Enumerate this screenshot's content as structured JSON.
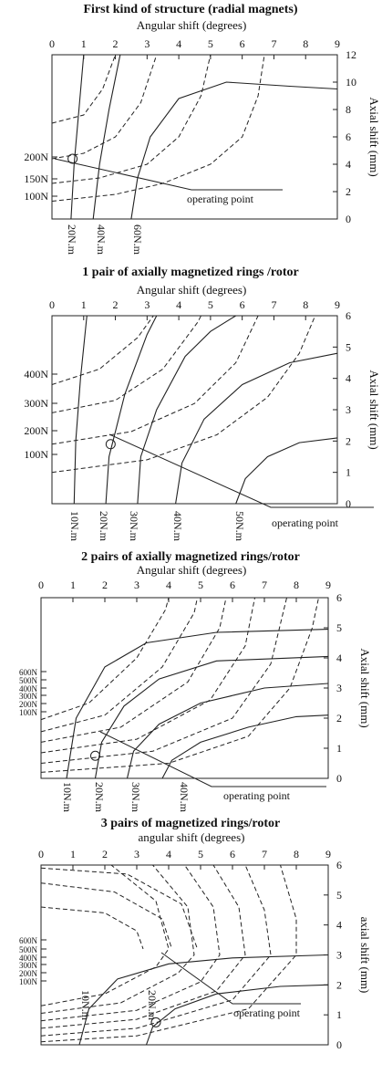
{
  "chart_data": [
    {
      "type": "line",
      "title": "First kind of structure (radial magnets)",
      "xlabel": "Angular shift (degrees)",
      "ylabel": "Axial shift (mm)",
      "xlim": [
        0,
        9
      ],
      "ylim": [
        0,
        12
      ],
      "x_ticks": [
        "0",
        "1",
        "2",
        "3",
        "4",
        "5",
        "6",
        "7",
        "8",
        "9"
      ],
      "y_ticks": [
        "0",
        "2",
        "4",
        "6",
        "8",
        "10",
        "12"
      ],
      "annotation": "operating point",
      "operating_point": {
        "x": 0.65,
        "y": 4.4
      },
      "solid_series": [
        {
          "name": "20N.m",
          "points": [
            [
              0.6,
              0
            ],
            [
              0.7,
              4
            ],
            [
              0.85,
              8
            ],
            [
              1.0,
              12
            ]
          ]
        },
        {
          "name": "40N.m",
          "points": [
            [
              1.3,
              0
            ],
            [
              1.5,
              4
            ],
            [
              1.8,
              8
            ],
            [
              2.15,
              12
            ]
          ]
        },
        {
          "name": "60N.m",
          "points": [
            [
              2.5,
              0
            ],
            [
              2.7,
              3
            ],
            [
              3.1,
              6
            ],
            [
              4.0,
              8.8
            ],
            [
              5.5,
              10
            ],
            [
              7.5,
              9.7
            ],
            [
              9.0,
              9.5
            ]
          ]
        }
      ],
      "dashed_series": [
        {
          "name": "100N",
          "points": [
            [
              0,
              1.3
            ],
            [
              2,
              1.8
            ],
            [
              3.5,
              2.6
            ],
            [
              5,
              4
            ],
            [
              6,
              6
            ],
            [
              6.5,
              9
            ],
            [
              6.7,
              12
            ]
          ]
        },
        {
          "name": "150N",
          "points": [
            [
              0,
              2.6
            ],
            [
              1.5,
              3
            ],
            [
              3,
              4
            ],
            [
              4,
              6
            ],
            [
              4.7,
              9
            ],
            [
              5,
              12
            ]
          ]
        },
        {
          "name": "200N",
          "points": [
            [
              0,
              4.4
            ],
            [
              1,
              4.8
            ],
            [
              2,
              6
            ],
            [
              2.8,
              8.5
            ],
            [
              3.3,
              12
            ]
          ]
        },
        {
          "name": "",
          "points": [
            [
              0,
              7
            ],
            [
              1,
              7.6
            ],
            [
              1.6,
              9.5
            ],
            [
              2,
              12
            ]
          ]
        }
      ]
    },
    {
      "type": "line",
      "title": "1 pair of axially magnetized rings /rotor",
      "xlabel": "Angular shift (degrees)",
      "ylabel": "Axial shift (mm)",
      "xlim": [
        0,
        9
      ],
      "ylim": [
        0,
        6
      ],
      "x_ticks": [
        "0",
        "1",
        "2",
        "3",
        "4",
        "5",
        "6",
        "7",
        "8",
        "9"
      ],
      "y_ticks": [
        "0",
        "1",
        "2",
        "3",
        "4",
        "5",
        "6"
      ],
      "annotation": "operating point",
      "operating_point": {
        "x": 1.85,
        "y": 1.9
      },
      "solid_series": [
        {
          "name": "10N.m",
          "points": [
            [
              0.7,
              0
            ],
            [
              0.75,
              2
            ],
            [
              0.9,
              4
            ],
            [
              1.1,
              6
            ]
          ]
        },
        {
          "name": "20N.m",
          "points": [
            [
              1.7,
              0
            ],
            [
              1.8,
              1.5
            ],
            [
              2.3,
              3.5
            ],
            [
              3.0,
              5.4
            ],
            [
              3.3,
              6
            ]
          ]
        },
        {
          "name": "30N.m",
          "points": [
            [
              2.7,
              0
            ],
            [
              2.8,
              1.5
            ],
            [
              3.3,
              3
            ],
            [
              4.2,
              4.7
            ],
            [
              5.0,
              5.5
            ],
            [
              5.8,
              6
            ]
          ]
        },
        {
          "name": "40N.m",
          "points": [
            [
              3.9,
              0
            ],
            [
              4.1,
              1.3
            ],
            [
              4.8,
              2.7
            ],
            [
              6.0,
              3.8
            ],
            [
              7.5,
              4.5
            ],
            [
              9,
              4.8
            ]
          ]
        },
        {
          "name": "50N.m",
          "points": [
            [
              5.8,
              0
            ],
            [
              6.1,
              0.8
            ],
            [
              6.8,
              1.5
            ],
            [
              7.8,
              1.95
            ],
            [
              9,
              2.1
            ]
          ]
        }
      ],
      "dashed_series": [
        {
          "name": "100N",
          "points": [
            [
              0,
              1.0
            ],
            [
              3,
              1.4
            ],
            [
              5.2,
              2.2
            ],
            [
              6.8,
              3.4
            ],
            [
              7.8,
              4.8
            ],
            [
              8.3,
              6
            ]
          ]
        },
        {
          "name": "200N",
          "points": [
            [
              0,
              1.9
            ],
            [
              2.5,
              2.3
            ],
            [
              4.5,
              3.2
            ],
            [
              5.8,
              4.5
            ],
            [
              6.5,
              6
            ]
          ]
        },
        {
          "name": "300N",
          "points": [
            [
              0,
              2.9
            ],
            [
              2,
              3.3
            ],
            [
              3.5,
              4.3
            ],
            [
              4.6,
              5.8
            ],
            [
              4.7,
              6
            ]
          ]
        },
        {
          "name": "400N",
          "points": [
            [
              0,
              3.8
            ],
            [
              1.5,
              4.3
            ],
            [
              2.7,
              5.3
            ],
            [
              3.2,
              6
            ]
          ]
        }
      ]
    },
    {
      "type": "line",
      "title": "2 pairs of axially magnetized rings/rotor",
      "xlabel": "Angular shift (degrees)",
      "ylabel": "Axial shift (mm)",
      "xlim": [
        0,
        9
      ],
      "ylim": [
        0,
        6
      ],
      "x_ticks": [
        "0",
        "1",
        "2",
        "3",
        "4",
        "5",
        "6",
        "7",
        "8",
        "9"
      ],
      "y_ticks": [
        "0",
        "1",
        "2",
        "3",
        "4",
        "5",
        "6"
      ],
      "annotation": "operating point",
      "operating_point": {
        "x": 1.7,
        "y": 0.75
      },
      "solid_series": [
        {
          "name": "10N.m",
          "points": [
            [
              0.8,
              0
            ],
            [
              1.1,
              2
            ],
            [
              2,
              3.7
            ],
            [
              3.3,
              4.5
            ],
            [
              5.5,
              4.85
            ],
            [
              9,
              4.95
            ]
          ]
        },
        {
          "name": "20N.m",
          "points": [
            [
              1.7,
              0
            ],
            [
              1.9,
              1.2
            ],
            [
              2.6,
              2.4
            ],
            [
              3.7,
              3.3
            ],
            [
              5.5,
              3.9
            ],
            [
              9,
              4.05
            ]
          ]
        },
        {
          "name": "30N.m",
          "points": [
            [
              2.7,
              0
            ],
            [
              2.9,
              0.9
            ],
            [
              3.7,
              1.8
            ],
            [
              5,
              2.5
            ],
            [
              7,
              3
            ],
            [
              9,
              3.15
            ]
          ]
        },
        {
          "name": "40N.m",
          "points": [
            [
              3.8,
              0
            ],
            [
              4.1,
              0.6
            ],
            [
              5,
              1.2
            ],
            [
              6.5,
              1.7
            ],
            [
              8,
              2.05
            ],
            [
              9,
              2.1
            ]
          ]
        }
      ],
      "dashed_series": [
        {
          "name": "100N",
          "points": [
            [
              0,
              0.2
            ],
            [
              4,
              0.5
            ],
            [
              6.5,
              1.4
            ],
            [
              7.8,
              3
            ],
            [
              8.5,
              5
            ],
            [
              8.7,
              6
            ]
          ]
        },
        {
          "name": "200N",
          "points": [
            [
              0,
              0.5
            ],
            [
              3.5,
              0.9
            ],
            [
              6,
              2
            ],
            [
              7.2,
              3.8
            ],
            [
              7.7,
              6
            ]
          ]
        },
        {
          "name": "300N",
          "points": [
            [
              0,
              0.85
            ],
            [
              3,
              1.3
            ],
            [
              5.3,
              2.6
            ],
            [
              6.4,
              4.4
            ],
            [
              6.7,
              6
            ]
          ]
        },
        {
          "name": "400N",
          "points": [
            [
              0,
              1.2
            ],
            [
              2.5,
              1.7
            ],
            [
              4.6,
              3.2
            ],
            [
              5.6,
              5
            ],
            [
              5.8,
              6
            ]
          ]
        },
        {
          "name": "500N",
          "points": [
            [
              0,
              1.55
            ],
            [
              2,
              2.1
            ],
            [
              3.8,
              3.7
            ],
            [
              4.8,
              5.5
            ],
            [
              4.9,
              6
            ]
          ]
        },
        {
          "name": "600N",
          "points": [
            [
              0,
              1.95
            ],
            [
              1.5,
              2.5
            ],
            [
              3,
              4
            ],
            [
              3.9,
              5.6
            ],
            [
              4.0,
              6
            ]
          ]
        }
      ]
    },
    {
      "type": "line",
      "title": "3 pairs of magnetized rings/rotor",
      "xlabel": "angular shift (degrees)",
      "ylabel": "axial shift (mm)",
      "xlim": [
        0,
        9
      ],
      "ylim": [
        0,
        6
      ],
      "x_ticks": [
        "0",
        "1",
        "2",
        "3",
        "4",
        "5",
        "6",
        "7",
        "8",
        "9"
      ],
      "y_ticks": [
        "0",
        "1",
        "2",
        "3",
        "4",
        "5",
        "6"
      ],
      "annotation": "operating point",
      "operating_point": {
        "x": 3.6,
        "y": 0.75
      },
      "solid_series": [
        {
          "name": "10N.m",
          "points": [
            [
              1.2,
              0
            ],
            [
              1.5,
              1.2
            ],
            [
              2.4,
              2.2
            ],
            [
              4,
              2.7
            ],
            [
              6,
              2.9
            ],
            [
              9,
              3
            ]
          ]
        },
        {
          "name": "20N.m",
          "points": [
            [
              3.3,
              0
            ],
            [
              3.5,
              0.6
            ],
            [
              4.2,
              1.2
            ],
            [
              5.5,
              1.7
            ],
            [
              7.5,
              1.95
            ],
            [
              9,
              2
            ]
          ]
        }
      ],
      "dashed_series": [
        {
          "name": "100N",
          "points": [
            [
              0,
              0.1
            ],
            [
              3,
              0.3
            ],
            [
              6.5,
              1.2
            ],
            [
              8,
              3
            ],
            [
              8,
              4.2
            ],
            [
              7.5,
              6
            ]
          ]
        },
        {
          "name": "200N",
          "points": [
            [
              0,
              0.3
            ],
            [
              3,
              0.55
            ],
            [
              6,
              1.5
            ],
            [
              7.2,
              3
            ],
            [
              7.0,
              4.5
            ],
            [
              6.4,
              6
            ]
          ]
        },
        {
          "name": "300N",
          "points": [
            [
              0,
              0.55
            ],
            [
              3,
              0.85
            ],
            [
              5.5,
              1.8
            ],
            [
              6.4,
              3
            ],
            [
              6.2,
              4.6
            ],
            [
              5.4,
              6
            ]
          ]
        },
        {
          "name": "400N",
          "points": [
            [
              0,
              0.8
            ],
            [
              3,
              1.15
            ],
            [
              5,
              2.1
            ],
            [
              5.6,
              3
            ],
            [
              5.4,
              4.6
            ],
            [
              4.5,
              6
            ]
          ]
        },
        {
          "name": "500N",
          "points": [
            [
              0,
              1.05
            ],
            [
              2.5,
              1.4
            ],
            [
              4.3,
              2.4
            ],
            [
              4.8,
              3
            ],
            [
              4.6,
              4.6
            ],
            [
              3.5,
              6
            ]
          ]
        },
        {
          "name": "600N",
          "points": [
            [
              0,
              1.3
            ],
            [
              2,
              1.7
            ],
            [
              3.6,
              2.6
            ],
            [
              4,
              3.2
            ],
            [
              3.6,
              4.8
            ],
            [
              2.2,
              6
            ]
          ]
        },
        {
          "name": "",
          "points": [
            [
              0,
              4.6
            ],
            [
              2,
              4.4
            ],
            [
              3,
              3.8
            ],
            [
              3.2,
              3.2
            ]
          ]
        },
        {
          "name": "",
          "points": [
            [
              0,
              5.4
            ],
            [
              2.3,
              5.1
            ],
            [
              3.8,
              4.2
            ],
            [
              4.1,
              3.2
            ]
          ]
        },
        {
          "name": "",
          "points": [
            [
              0,
              5.9
            ],
            [
              2.7,
              5.7
            ],
            [
              4.4,
              4.7
            ],
            [
              4.9,
              3.2
            ]
          ]
        }
      ]
    }
  ]
}
